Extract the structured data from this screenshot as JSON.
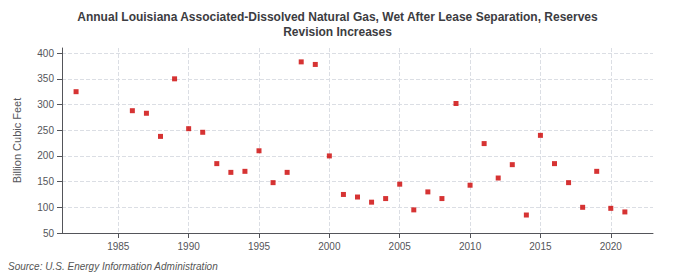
{
  "chart_data": {
    "type": "scatter",
    "title": "Annual Louisiana Associated-Dissolved Natural Gas, Wet After Lease Separation, Reserves\nRevision Increases",
    "ylabel": "Billion Cubic Feet",
    "annotation": "Source: U.S. Energy Information Administration",
    "x": [
      1982,
      1986,
      1987,
      1988,
      1989,
      1990,
      1991,
      1992,
      1993,
      1994,
      1995,
      1996,
      1997,
      1998,
      1999,
      2000,
      2001,
      2002,
      2003,
      2004,
      2005,
      2006,
      2007,
      2008,
      2009,
      2010,
      2011,
      2012,
      2013,
      2014,
      2015,
      2016,
      2017,
      2018,
      2019,
      2020,
      2021
    ],
    "values": [
      325,
      288,
      283,
      238,
      350,
      253,
      246,
      185,
      168,
      170,
      210,
      148,
      168,
      383,
      378,
      200,
      125,
      120,
      110,
      117,
      145,
      95,
      130,
      117,
      302,
      143,
      224,
      157,
      183,
      85,
      240,
      185,
      148,
      100,
      170,
      98,
      91
    ],
    "color": "#cc0000",
    "marker": "square",
    "xlim": [
      1981,
      2023
    ],
    "ylim": [
      50,
      410
    ],
    "xticks": [
      1985,
      1990,
      1995,
      2000,
      2005,
      2010,
      2015,
      2020
    ],
    "yticks": [
      50,
      100,
      150,
      200,
      250,
      300,
      350,
      400
    ],
    "grid": true
  }
}
